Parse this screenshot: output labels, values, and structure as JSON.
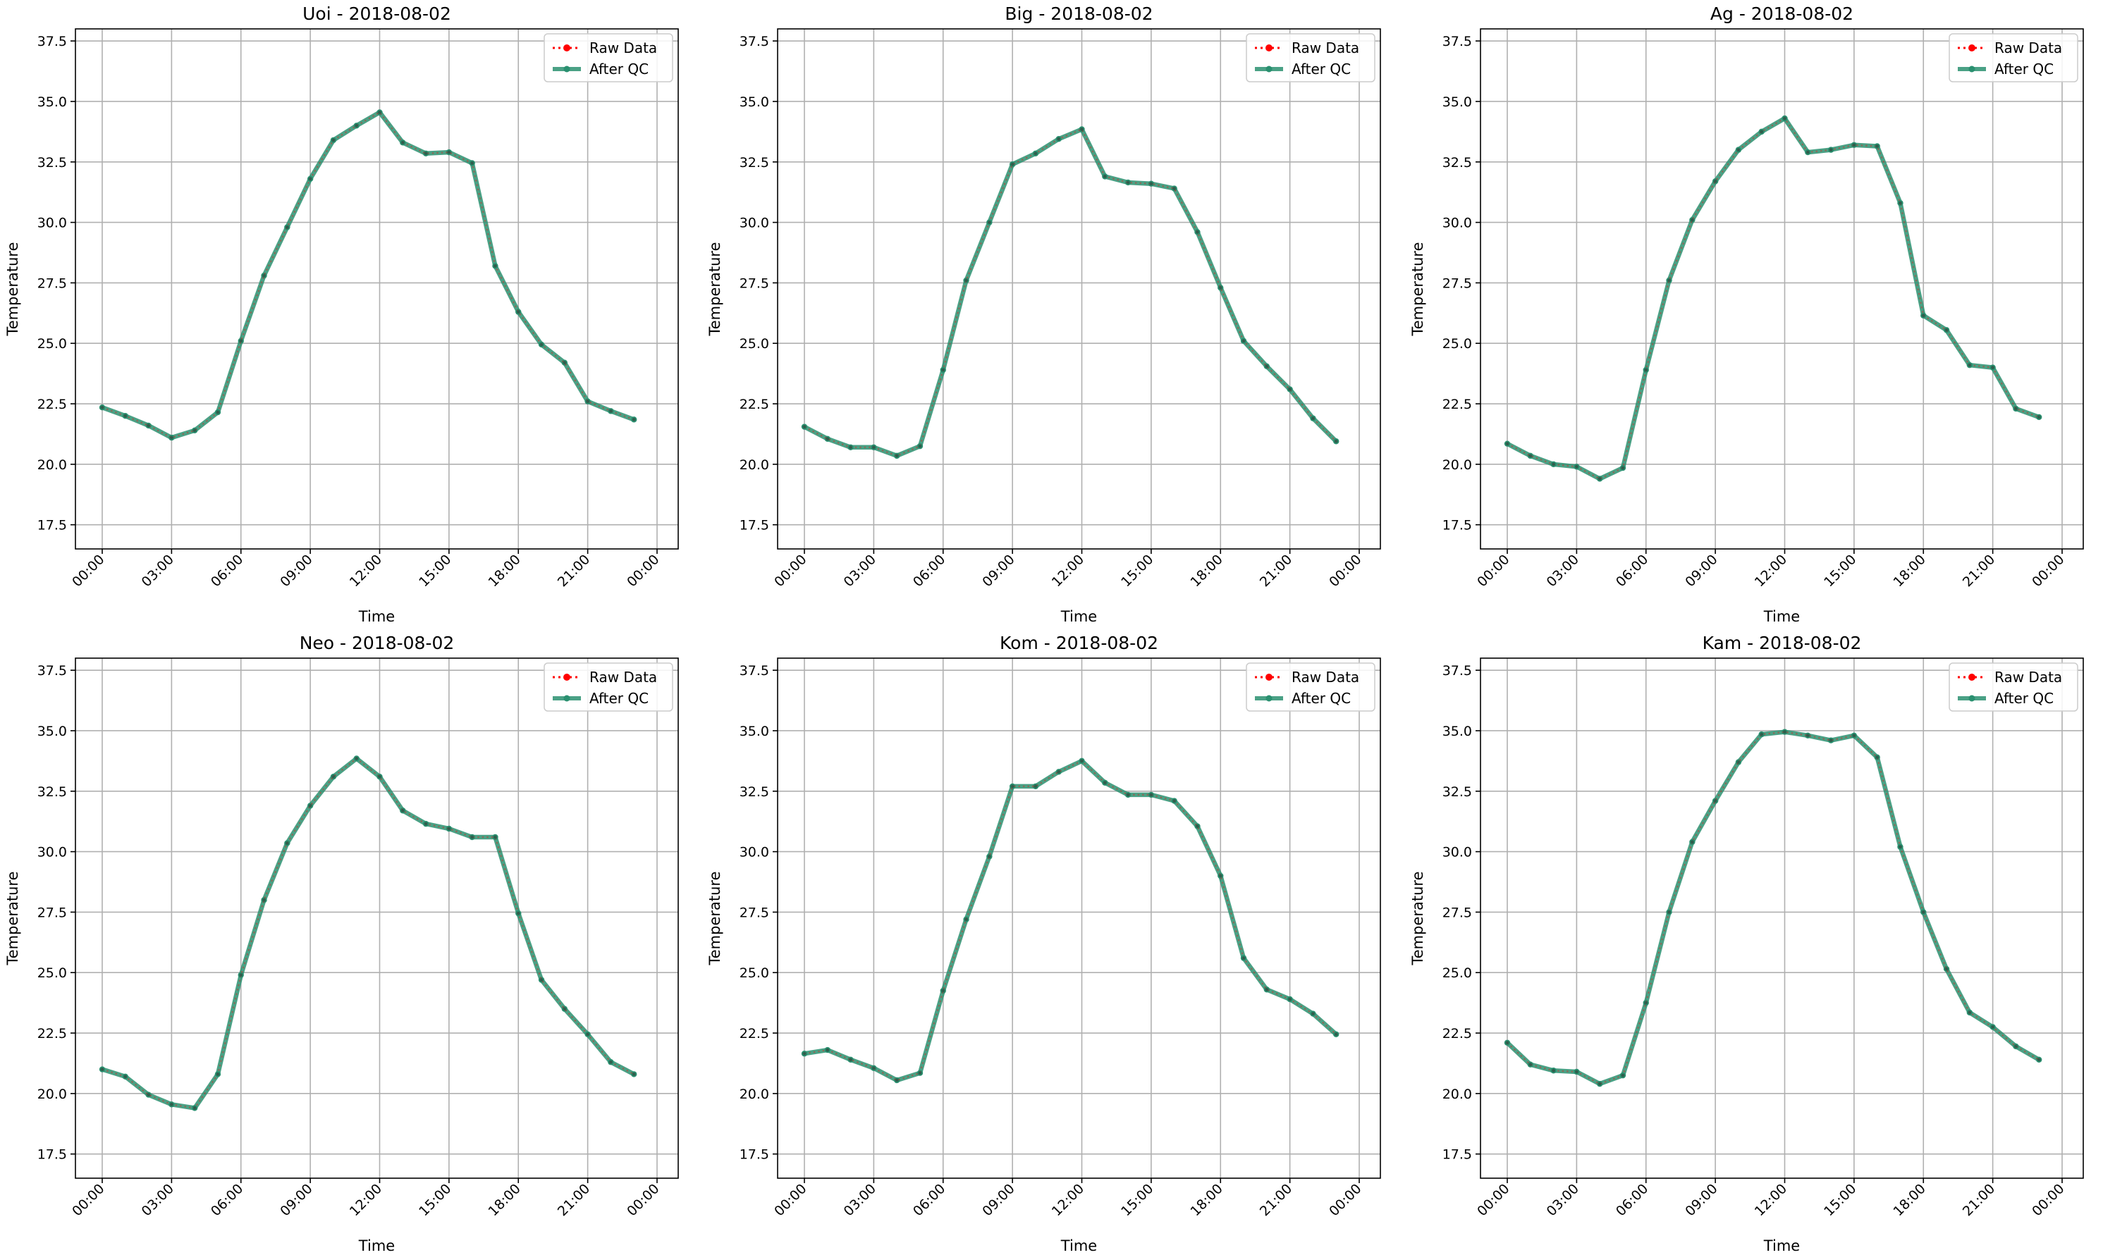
{
  "figure": {
    "background": "#ffffff"
  },
  "colors": {
    "raw": "#ff0000",
    "qc": "#2a9070",
    "grid": "#b0b0b0",
    "axis": "#000000"
  },
  "legend_location": "upper right",
  "chart_data": [
    {
      "type": "line",
      "title": "Uoi - 2018-08-02",
      "xlabel": "Time",
      "ylabel": "Temperature",
      "ylim": [
        16.5,
        38.0
      ],
      "yticks": [
        "17.5",
        "20.0",
        "22.5",
        "25.0",
        "27.5",
        "30.0",
        "32.5",
        "35.0",
        "37.5"
      ],
      "xticks": [
        "00:00",
        "03:00",
        "06:00",
        "09:00",
        "12:00",
        "15:00",
        "18:00",
        "21:00",
        "00:00"
      ],
      "grid": true,
      "legend": [
        "Raw Data",
        "After QC"
      ],
      "x": [
        "00:00",
        "01:00",
        "02:00",
        "03:00",
        "04:00",
        "05:00",
        "06:00",
        "07:00",
        "08:00",
        "09:00",
        "10:00",
        "11:00",
        "12:00",
        "13:00",
        "14:00",
        "15:00",
        "16:00",
        "17:00",
        "18:00",
        "19:00",
        "20:00",
        "21:00",
        "22:00",
        "23:00"
      ],
      "series": [
        {
          "name": "Raw Data",
          "values": [
            22.35,
            22.0,
            21.6,
            21.1,
            21.4,
            22.15,
            25.1,
            27.8,
            29.8,
            31.8,
            33.4,
            34.0,
            34.55,
            33.3,
            32.85,
            32.9,
            32.45,
            28.2,
            26.3,
            24.95,
            24.2,
            22.6,
            22.2,
            21.85
          ]
        },
        {
          "name": "After QC",
          "values": [
            22.35,
            22.0,
            21.6,
            21.1,
            21.4,
            22.15,
            25.1,
            27.8,
            29.8,
            31.8,
            33.4,
            34.0,
            34.55,
            33.3,
            32.85,
            32.9,
            32.45,
            28.2,
            26.3,
            24.95,
            24.2,
            22.6,
            22.2,
            21.85
          ]
        }
      ]
    },
    {
      "type": "line",
      "title": "Big - 2018-08-02",
      "xlabel": "Time",
      "ylabel": "Temperature",
      "ylim": [
        16.5,
        38.0
      ],
      "yticks": [
        "17.5",
        "20.0",
        "22.5",
        "25.0",
        "27.5",
        "30.0",
        "32.5",
        "35.0",
        "37.5"
      ],
      "xticks": [
        "00:00",
        "03:00",
        "06:00",
        "09:00",
        "12:00",
        "15:00",
        "18:00",
        "21:00",
        "00:00"
      ],
      "grid": true,
      "legend": [
        "Raw Data",
        "After QC"
      ],
      "x": [
        "00:00",
        "01:00",
        "02:00",
        "03:00",
        "04:00",
        "05:00",
        "06:00",
        "07:00",
        "08:00",
        "09:00",
        "10:00",
        "11:00",
        "12:00",
        "13:00",
        "14:00",
        "15:00",
        "16:00",
        "17:00",
        "18:00",
        "19:00",
        "20:00",
        "21:00",
        "22:00",
        "23:00"
      ],
      "series": [
        {
          "name": "Raw Data",
          "values": [
            21.55,
            21.05,
            20.7,
            20.7,
            20.35,
            20.75,
            23.9,
            27.6,
            30.0,
            32.4,
            32.85,
            33.45,
            33.85,
            31.9,
            31.65,
            31.6,
            31.4,
            29.6,
            27.3,
            25.1,
            24.05,
            23.1,
            21.9,
            20.95
          ]
        },
        {
          "name": "After QC",
          "values": [
            21.55,
            21.05,
            20.7,
            20.7,
            20.35,
            20.75,
            23.9,
            27.6,
            30.0,
            32.4,
            32.85,
            33.45,
            33.85,
            31.9,
            31.65,
            31.6,
            31.4,
            29.6,
            27.3,
            25.1,
            24.05,
            23.1,
            21.9,
            20.95
          ]
        }
      ]
    },
    {
      "type": "line",
      "title": "Ag - 2018-08-02",
      "xlabel": "Time",
      "ylabel": "Temperature",
      "ylim": [
        16.5,
        38.0
      ],
      "yticks": [
        "17.5",
        "20.0",
        "22.5",
        "25.0",
        "27.5",
        "30.0",
        "32.5",
        "35.0",
        "37.5"
      ],
      "xticks": [
        "00:00",
        "03:00",
        "06:00",
        "09:00",
        "12:00",
        "15:00",
        "18:00",
        "21:00",
        "00:00"
      ],
      "grid": true,
      "legend": [
        "Raw Data",
        "After QC"
      ],
      "x": [
        "00:00",
        "01:00",
        "02:00",
        "03:00",
        "04:00",
        "05:00",
        "06:00",
        "07:00",
        "08:00",
        "09:00",
        "10:00",
        "11:00",
        "12:00",
        "13:00",
        "14:00",
        "15:00",
        "16:00",
        "17:00",
        "18:00",
        "19:00",
        "20:00",
        "21:00",
        "22:00",
        "23:00"
      ],
      "series": [
        {
          "name": "Raw Data",
          "values": [
            20.85,
            20.35,
            20.0,
            19.9,
            19.4,
            19.85,
            23.9,
            27.6,
            30.1,
            31.7,
            33.0,
            33.75,
            34.3,
            32.9,
            33.0,
            33.2,
            33.15,
            30.8,
            26.15,
            25.55,
            24.1,
            24.0,
            22.3,
            21.95
          ]
        },
        {
          "name": "After QC",
          "values": [
            20.85,
            20.35,
            20.0,
            19.9,
            19.4,
            19.85,
            23.9,
            27.6,
            30.1,
            31.7,
            33.0,
            33.75,
            34.3,
            32.9,
            33.0,
            33.2,
            33.15,
            30.8,
            26.15,
            25.55,
            24.1,
            24.0,
            22.3,
            21.95
          ]
        }
      ]
    },
    {
      "type": "line",
      "title": "Neo - 2018-08-02",
      "xlabel": "Time",
      "ylabel": "Temperature",
      "ylim": [
        16.5,
        38.0
      ],
      "yticks": [
        "17.5",
        "20.0",
        "22.5",
        "25.0",
        "27.5",
        "30.0",
        "32.5",
        "35.0",
        "37.5"
      ],
      "xticks": [
        "00:00",
        "03:00",
        "06:00",
        "09:00",
        "12:00",
        "15:00",
        "18:00",
        "21:00",
        "00:00"
      ],
      "grid": true,
      "legend": [
        "Raw Data",
        "After QC"
      ],
      "x": [
        "00:00",
        "01:00",
        "02:00",
        "03:00",
        "04:00",
        "05:00",
        "06:00",
        "07:00",
        "08:00",
        "09:00",
        "10:00",
        "11:00",
        "12:00",
        "13:00",
        "14:00",
        "15:00",
        "16:00",
        "17:00",
        "18:00",
        "19:00",
        "20:00",
        "21:00",
        "22:00",
        "23:00"
      ],
      "series": [
        {
          "name": "Raw Data",
          "values": [
            21.0,
            20.7,
            19.95,
            19.55,
            19.4,
            20.8,
            24.9,
            28.0,
            30.35,
            31.9,
            33.1,
            33.85,
            33.1,
            31.7,
            31.15,
            30.95,
            30.6,
            30.6,
            27.45,
            24.7,
            23.5,
            22.45,
            21.3,
            20.8
          ]
        },
        {
          "name": "After QC",
          "values": [
            21.0,
            20.7,
            19.95,
            19.55,
            19.4,
            20.8,
            24.9,
            28.0,
            30.35,
            31.9,
            33.1,
            33.85,
            33.1,
            31.7,
            31.15,
            30.95,
            30.6,
            30.6,
            27.45,
            24.7,
            23.5,
            22.45,
            21.3,
            20.8
          ]
        }
      ]
    },
    {
      "type": "line",
      "title": "Kom - 2018-08-02",
      "xlabel": "Time",
      "ylabel": "Temperature",
      "ylim": [
        16.5,
        38.0
      ],
      "yticks": [
        "17.5",
        "20.0",
        "22.5",
        "25.0",
        "27.5",
        "30.0",
        "32.5",
        "35.0",
        "37.5"
      ],
      "xticks": [
        "00:00",
        "03:00",
        "06:00",
        "09:00",
        "12:00",
        "15:00",
        "18:00",
        "21:00",
        "00:00"
      ],
      "grid": true,
      "legend": [
        "Raw Data",
        "After QC"
      ],
      "x": [
        "00:00",
        "01:00",
        "02:00",
        "03:00",
        "04:00",
        "05:00",
        "06:00",
        "07:00",
        "08:00",
        "09:00",
        "10:00",
        "11:00",
        "12:00",
        "13:00",
        "14:00",
        "15:00",
        "16:00",
        "17:00",
        "18:00",
        "19:00",
        "20:00",
        "21:00",
        "22:00",
        "23:00"
      ],
      "series": [
        {
          "name": "Raw Data",
          "values": [
            21.65,
            21.8,
            21.4,
            21.05,
            20.55,
            20.85,
            24.25,
            27.2,
            29.8,
            32.7,
            32.7,
            33.3,
            33.75,
            32.85,
            32.35,
            32.35,
            32.1,
            31.05,
            29.0,
            25.6,
            24.3,
            23.9,
            23.3,
            22.45
          ]
        },
        {
          "name": "After QC",
          "values": [
            21.65,
            21.8,
            21.4,
            21.05,
            20.55,
            20.85,
            24.25,
            27.2,
            29.8,
            32.7,
            32.7,
            33.3,
            33.75,
            32.85,
            32.35,
            32.35,
            32.1,
            31.05,
            29.0,
            25.6,
            24.3,
            23.9,
            23.3,
            22.45
          ]
        }
      ]
    },
    {
      "type": "line",
      "title": "Kam - 2018-08-02",
      "xlabel": "Time",
      "ylabel": "Temperature",
      "ylim": [
        16.5,
        38.0
      ],
      "yticks": [
        "17.5",
        "20.0",
        "22.5",
        "25.0",
        "27.5",
        "30.0",
        "32.5",
        "35.0",
        "37.5"
      ],
      "xticks": [
        "00:00",
        "03:00",
        "06:00",
        "09:00",
        "12:00",
        "15:00",
        "18:00",
        "21:00",
        "00:00"
      ],
      "grid": true,
      "legend": [
        "Raw Data",
        "After QC"
      ],
      "x": [
        "00:00",
        "01:00",
        "02:00",
        "03:00",
        "04:00",
        "05:00",
        "06:00",
        "07:00",
        "08:00",
        "09:00",
        "10:00",
        "11:00",
        "12:00",
        "13:00",
        "14:00",
        "15:00",
        "16:00",
        "17:00",
        "18:00",
        "19:00",
        "20:00",
        "21:00",
        "22:00",
        "23:00"
      ],
      "series": [
        {
          "name": "Raw Data",
          "values": [
            22.1,
            21.2,
            20.95,
            20.9,
            20.4,
            20.75,
            23.75,
            27.5,
            30.4,
            32.1,
            33.7,
            34.85,
            34.95,
            34.8,
            34.6,
            34.8,
            33.9,
            30.2,
            27.5,
            25.15,
            23.35,
            22.75,
            21.95,
            21.4
          ]
        },
        {
          "name": "After QC",
          "values": [
            22.1,
            21.2,
            20.95,
            20.9,
            20.4,
            20.75,
            23.75,
            27.5,
            30.4,
            32.1,
            33.7,
            34.85,
            34.95,
            34.8,
            34.6,
            34.8,
            33.9,
            30.2,
            27.5,
            25.15,
            23.35,
            22.75,
            21.95,
            21.4
          ]
        }
      ]
    }
  ]
}
